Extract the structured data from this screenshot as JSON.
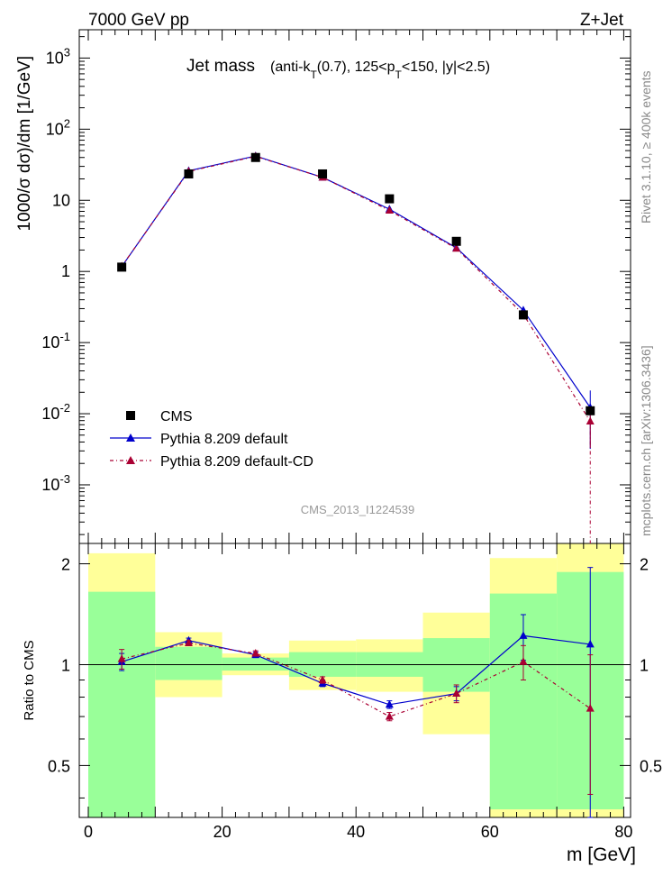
{
  "header": {
    "left": "7000 GeV pp",
    "right": "Z+Jet"
  },
  "side_labels": {
    "rivet": "Rivet 3.1.10, ≥ 400k events",
    "mcplots": "mcplots.cern.ch [arXiv:1306.3436]"
  },
  "watermark": "CMS_2013_I1224539",
  "chart_data": {
    "type": "line",
    "title": "Jet mass",
    "subtitle_parts": {
      "a": "(anti-k",
      "a_sub": "T",
      "b": "(0.7), 125<p",
      "b_sub": "T",
      "c": "<150, |y|<2.5)"
    },
    "xlabel": "m [GeV]",
    "ylabel": "1000/σ dσ)/dm [1/GeV]",
    "ylabel_ratio": "Ratio to CMS",
    "xlim": [
      0,
      80
    ],
    "ylim_log": [
      0.00015,
      2500
    ],
    "ylim_ratio": [
      0.35,
      2.3
    ],
    "x_ticks": [
      "0",
      "20",
      "40",
      "60",
      "80"
    ],
    "y_ticks": [
      "10^3",
      "10^2",
      "10",
      "1",
      "10^-1",
      "10^-2",
      "10^-3"
    ],
    "ratio_ticks": [
      "0.5",
      "1",
      "2"
    ],
    "bins": [
      [
        0,
        10
      ],
      [
        10,
        20
      ],
      [
        20,
        30
      ],
      [
        30,
        40
      ],
      [
        40,
        50
      ],
      [
        50,
        60
      ],
      [
        60,
        70
      ],
      [
        70,
        80
      ]
    ],
    "x": [
      5,
      15,
      25,
      35,
      45,
      55,
      65,
      75
    ],
    "band_inner": [
      [
        0.35,
        1.65
      ],
      [
        0.9,
        1.13
      ],
      [
        0.96,
        1.05
      ],
      [
        0.92,
        1.09
      ],
      [
        0.92,
        1.09
      ],
      [
        0.83,
        1.2
      ],
      [
        0.37,
        1.63
      ],
      [
        0.37,
        1.89
      ]
    ],
    "band_outer": [
      [
        0.35,
        2.15
      ],
      [
        0.8,
        1.25
      ],
      [
        0.93,
        1.08
      ],
      [
        0.84,
        1.18
      ],
      [
        0.83,
        1.19
      ],
      [
        0.62,
        1.43
      ],
      [
        0.35,
        2.08
      ],
      [
        0.35,
        2.3
      ]
    ],
    "legend": [
      {
        "name": "CMS",
        "color": "#000000"
      },
      {
        "name": "Pythia 8.209 default",
        "color": "#0000cc"
      },
      {
        "name": "Pythia 8.209 default-CD",
        "color": "#aa0033"
      }
    ],
    "series": [
      {
        "name": "CMS",
        "color": "#000000",
        "values": [
          1.15,
          23.5,
          40,
          23.5,
          10.5,
          2.65,
          0.245,
          0.011
        ],
        "errors": [
          0.05,
          0.5,
          1,
          0.5,
          0.3,
          0.08,
          0.015,
          0.003
        ]
      },
      {
        "name": "Pythia 8.209 default",
        "color": "#0000cc",
        "values": [
          1.17,
          26,
          42,
          21,
          7.5,
          2.15,
          0.285,
          0.0122
        ],
        "errors": [
          0.02,
          0.3,
          0.4,
          0.2,
          0.1,
          0.04,
          0.02,
          0.009
        ]
      },
      {
        "name": "Pythia 8.209 default-CD",
        "color": "#aa0033",
        "values": [
          1.18,
          25.5,
          41.5,
          21,
          7.2,
          2.1,
          0.25,
          0.0078
        ],
        "errors": [
          0.02,
          0.3,
          0.4,
          0.2,
          0.1,
          0.04,
          0.02,
          0.0045
        ]
      }
    ],
    "ratios": [
      {
        "name": "Pythia 8.209 default",
        "values": [
          1.02,
          1.18,
          1.07,
          0.88,
          0.76,
          0.82,
          1.22,
          1.15
        ],
        "errors": [
          0.06,
          0.02,
          0.02,
          0.02,
          0.02,
          0.04,
          0.19,
          0.8
        ]
      },
      {
        "name": "Pythia 8.209 default-CD",
        "values": [
          1.04,
          1.16,
          1.08,
          0.9,
          0.7,
          0.82,
          1.02,
          0.74
        ],
        "errors": [
          0.07,
          0.02,
          0.02,
          0.02,
          0.02,
          0.05,
          0.12,
          0.33
        ]
      }
    ]
  }
}
